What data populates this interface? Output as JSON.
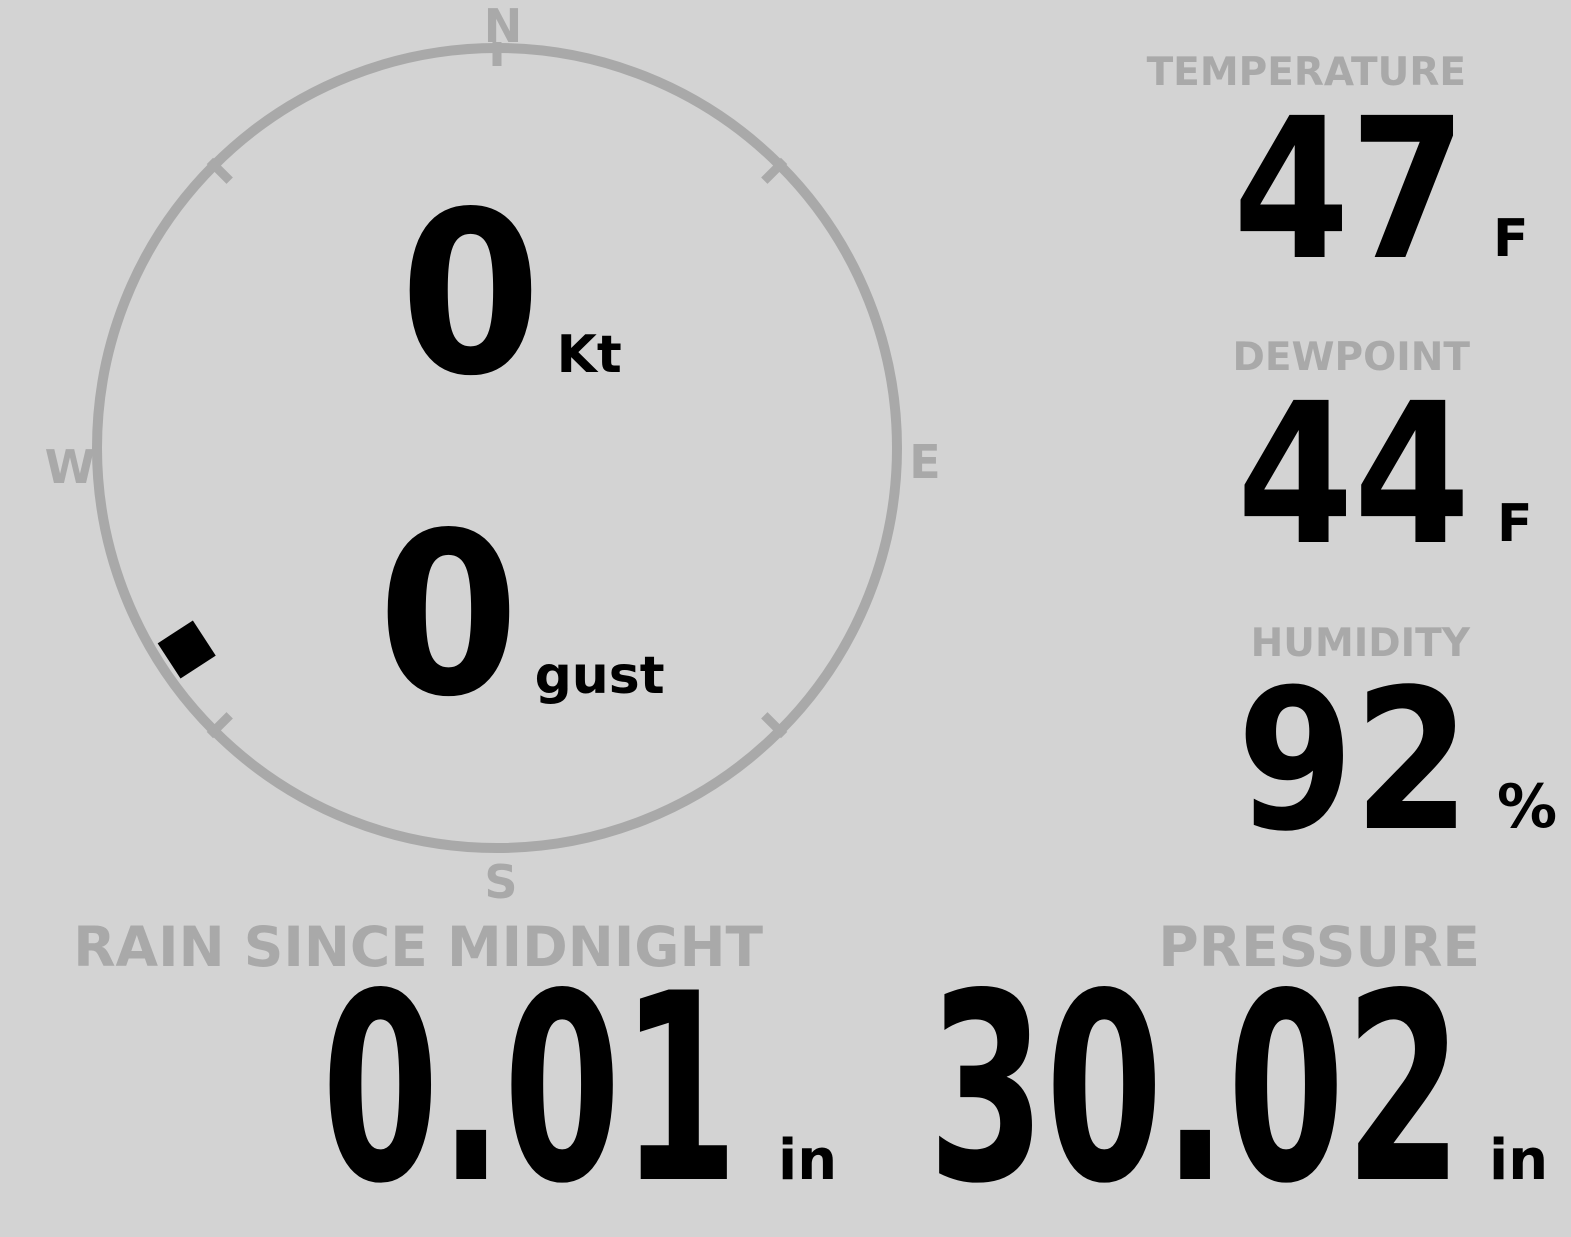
{
  "theme": {
    "background": "#d3d3d3",
    "muted_gray": "#a9a9a9",
    "value_black": "#000000"
  },
  "compass": {
    "cardinals": {
      "north": "N",
      "east": "E",
      "south": "S",
      "west": "W"
    },
    "wind_speed": {
      "value": "0",
      "unit": "Kt"
    },
    "wind_gust": {
      "value": "0",
      "unit": "gust"
    },
    "direction_marker_bearing_deg": 237
  },
  "metrics": {
    "temperature": {
      "label": "TEMPERATURE",
      "value": "47",
      "unit": "F"
    },
    "dewpoint": {
      "label": "DEWPOINT",
      "value": "44",
      "unit": "F"
    },
    "humidity": {
      "label": "HUMIDITY",
      "value": "92",
      "unit": "%"
    },
    "rain_since_midnight": {
      "label": "RAIN SINCE MIDNIGHT",
      "value": "0.01",
      "unit": "in"
    },
    "pressure": {
      "label": "PRESSURE",
      "value": "30.02",
      "unit": "in"
    }
  }
}
